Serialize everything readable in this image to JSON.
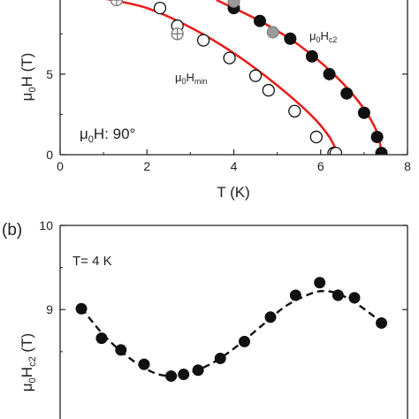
{
  "chart_data": [
    {
      "panel": "",
      "type": "scatter",
      "xlabel": "T (K)",
      "ylabel_main": "μ",
      "ylabel_sub": "0",
      "ylabel_rest": "H (T)",
      "xlim": [
        0,
        8
      ],
      "ylim": [
        0,
        9.6
      ],
      "xticks": [
        0,
        2,
        4,
        6,
        8
      ],
      "yticks": [
        0,
        5
      ],
      "annotation_main": "μ",
      "annotation_sub": "0",
      "annotation_rest": "H: 90°",
      "series": [
        {
          "name_main": "μ",
          "name_sub": "0",
          "name_tail": "H",
          "name_tail_sub": "c2",
          "marker": "filled",
          "x": [
            4.0,
            4.6,
            5.3,
            5.8,
            6.2,
            6.6,
            7.0,
            7.3,
            7.4
          ],
          "y": [
            9.1,
            8.3,
            7.2,
            6.1,
            5.0,
            3.8,
            2.6,
            1.1,
            0.1
          ]
        },
        {
          "name_main": "μ",
          "name_sub": "0",
          "name_tail": "H",
          "name_tail_sub": "min",
          "marker": "open",
          "x": [
            2.3,
            2.7,
            3.3,
            3.9,
            4.5,
            4.8,
            5.4,
            5.9,
            6.3,
            6.35
          ],
          "y": [
            9.1,
            8.0,
            7.1,
            6.0,
            4.9,
            4.0,
            2.7,
            1.1,
            0.1,
            0.1
          ]
        },
        {
          "marker": "crossed",
          "x": [
            1.3,
            2.7
          ],
          "y": [
            9.6,
            7.5
          ]
        },
        {
          "marker": "grey",
          "x": [
            4.0,
            4.9
          ],
          "y": [
            9.5,
            7.6
          ]
        }
      ],
      "fits": [
        {
          "x": [
            1.0,
            2.0,
            3.0,
            4.0,
            5.0,
            5.8,
            6.2,
            6.4
          ],
          "y": [
            9.7,
            9.1,
            7.9,
            6.3,
            4.3,
            2.4,
            1.1,
            0.0
          ]
        },
        {
          "x": [
            3.6,
            4.6,
            5.5,
            6.3,
            6.9,
            7.3,
            7.4
          ],
          "y": [
            9.6,
            8.3,
            6.8,
            5.0,
            3.2,
            1.4,
            0.0
          ]
        }
      ]
    },
    {
      "panel": "(b)",
      "type": "scatter",
      "ylabel_main": "μ",
      "ylabel_sub": "0",
      "ylabel_rest": "H",
      "ylabel_rest_sub": "c2",
      "ylabel_unit": " (T)",
      "xlim": [
        0,
        360
      ],
      "ylim": [
        7.7,
        10
      ],
      "yticks": [
        9,
        10
      ],
      "annotation": "T= 4 K",
      "series": [
        {
          "marker": "filled",
          "x": [
            22,
            43,
            63,
            87,
            115,
            128,
            143,
            166,
            191,
            218,
            244,
            269,
            288,
            305,
            333
          ],
          "y": [
            9.01,
            8.66,
            8.52,
            8.35,
            8.21,
            8.23,
            8.28,
            8.42,
            8.62,
            8.91,
            9.17,
            9.32,
            9.17,
            9.14,
            8.84
          ]
        }
      ],
      "fit": {
        "style": "dashed",
        "x": [
          22,
          45,
          70,
          95,
          115,
          135,
          160,
          185,
          210,
          235,
          260,
          275,
          290,
          310,
          335
        ],
        "y": [
          9.02,
          8.7,
          8.44,
          8.26,
          8.21,
          8.25,
          8.38,
          8.58,
          8.82,
          9.05,
          9.19,
          9.22,
          9.18,
          9.05,
          8.83
        ]
      }
    }
  ]
}
